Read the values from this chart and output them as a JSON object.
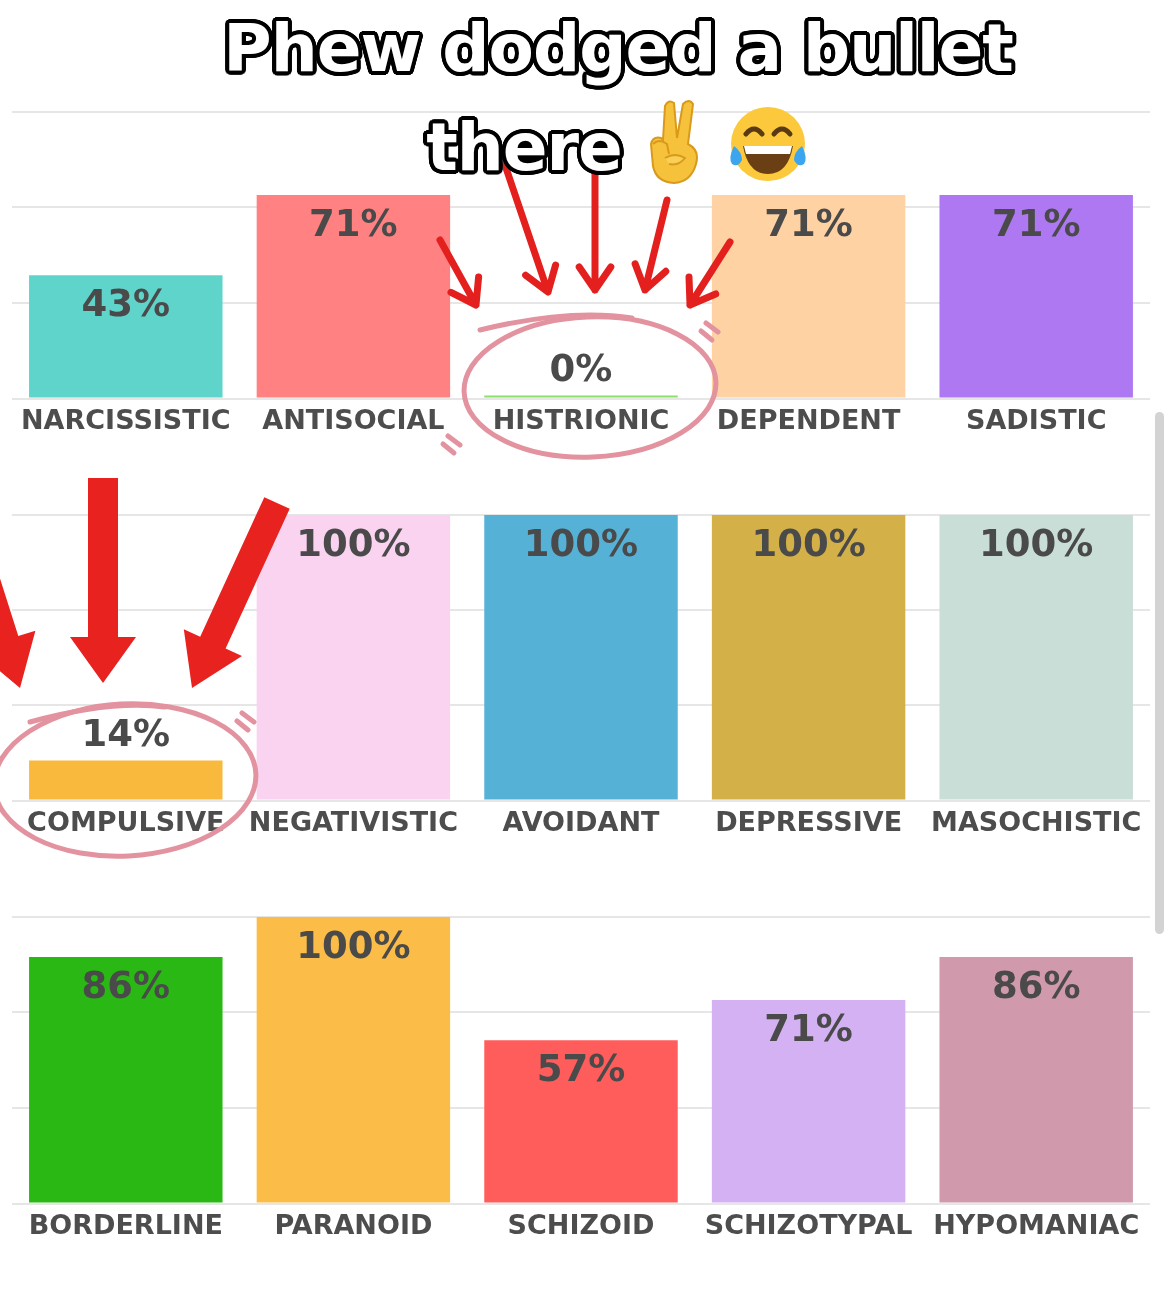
{
  "chart_data": [
    {
      "type": "bar",
      "title": "Phew dodged a bullet there",
      "categories": [
        "NARCISSISTIC",
        "ANTISOCIAL",
        "HISTRIONIC",
        "DEPENDENT",
        "SADISTIC"
      ],
      "values": [
        43,
        71,
        0,
        71,
        71
      ],
      "value_labels": [
        "43%",
        "71%",
        "0%",
        "71%",
        "71%"
      ],
      "colors": [
        "#5fd4ca",
        "#ff8181",
        "#8ddf6a",
        "#ffd2a4",
        "#ae78f2"
      ],
      "ylim": [
        0,
        100
      ],
      "yticks": [
        {
          "value": 0,
          "label": null
        },
        {
          "value": 33.3,
          "label": null
        },
        {
          "value": 66.7,
          "label": null
        },
        {
          "value": 100,
          "label": null
        }
      ],
      "grid": "y",
      "tick_labels": "x"
    },
    {
      "type": "bar",
      "categories": [
        "COMPULSIVE",
        "NEGATIVISTIC",
        "AVOIDANT",
        "DEPRESSIVE",
        "MASOCHISTIC"
      ],
      "values": [
        14,
        100,
        100,
        100,
        100
      ],
      "value_labels": [
        "14%",
        "100%",
        "100%",
        "100%",
        "100%"
      ],
      "colors": [
        "#f9b93c",
        "#f9d3f0",
        "#56b1d6",
        "#d4b048",
        "#c9ded7"
      ],
      "ylim": [
        0,
        100
      ],
      "yticks": [
        {
          "value": 0,
          "label": null
        },
        {
          "value": 33.3,
          "label": null
        },
        {
          "value": 66.7,
          "label": null
        },
        {
          "value": 100,
          "label": null
        }
      ],
      "grid": "y",
      "tick_labels": "x"
    },
    {
      "type": "bar",
      "categories": [
        "BORDERLINE",
        "PARANOID",
        "SCHIZOID",
        "SCHIZOTYPAL",
        "HYPOMANIAC"
      ],
      "values": [
        86,
        100,
        57,
        71,
        86
      ],
      "value_labels": [
        "86%",
        "100%",
        "57%",
        "71%",
        "86%"
      ],
      "colors": [
        "#29b814",
        "#fbbd48",
        "#ff5c5c",
        "#d3b1f3",
        "#d19aac"
      ],
      "ylim": [
        0,
        100
      ],
      "yticks": [
        {
          "value": 0,
          "label": null
        },
        {
          "value": 33.3,
          "label": null
        },
        {
          "value": 66.7,
          "label": null
        },
        {
          "value": 100,
          "label": null
        }
      ],
      "grid": "y",
      "tick_labels": "x"
    }
  ]
}
